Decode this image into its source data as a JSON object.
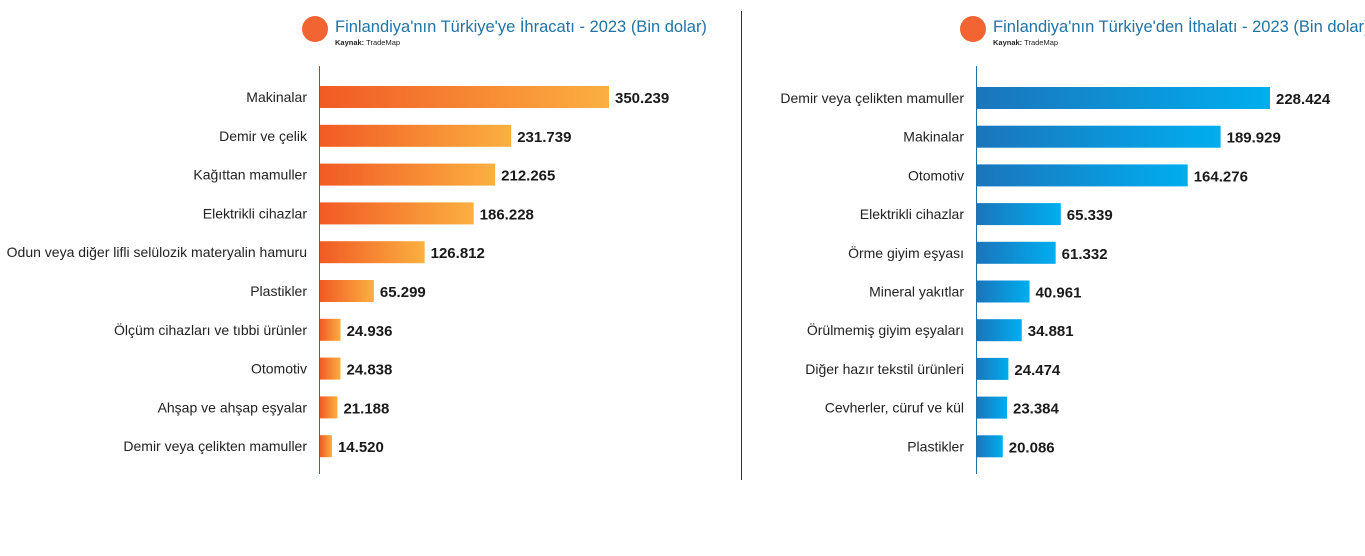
{
  "colors": {
    "title": "#1f73a6",
    "export_dot": "#f26532",
    "import_dot": "#f26532",
    "export_bar_start": "#f15a24",
    "export_bar_end": "#fbb040",
    "import_bar_start": "#1b75bc",
    "import_bar_end": "#00aeef",
    "axis": "#1f73a6",
    "label": "#222222",
    "value": "#1a1a1a"
  },
  "chart_data": [
    {
      "type": "bar",
      "orientation": "horizontal",
      "title": "Finlandiya'nın Türkiye'ye İhracatı - 2023 (Bin dolar)",
      "source_label": "Kaynak:",
      "source_value": "TradeMap",
      "categories": [
        "Makinalar",
        "Demir ve çelik",
        "Kağıttan mamuller",
        "Elektrikli cihazlar",
        "Odun veya diğer lifli selülozik materyalin hamuru",
        "Plastikler",
        "Ölçüm cihazları ve tıbbi ürünler",
        "Otomotiv",
        "Ahşap ve ahşap eşyalar",
        "Demir veya çelikten mamuller"
      ],
      "values": [
        350239,
        231739,
        212265,
        186228,
        126812,
        65299,
        24936,
        24838,
        21188,
        14520
      ],
      "value_labels": [
        "350.239",
        "231.739",
        "212.265",
        "186.228",
        "126.812",
        "65.299",
        "24.936",
        "24.838",
        "21.188",
        "14.520"
      ],
      "xlim": [
        0,
        350239
      ]
    },
    {
      "type": "bar",
      "orientation": "horizontal",
      "title": "Finlandiya'nın Türkiye'den İthalatı - 2023 (Bin dolar)",
      "source_label": "Kaynak:",
      "source_value": "TradeMap",
      "categories": [
        "Demir veya çelikten mamuller",
        "Makinalar",
        "Otomotiv",
        "Elektrikli cihazlar",
        "Örme giyim eşyası",
        "Mineral yakıtlar",
        "Örülmemiş giyim eşyaları",
        "Diğer hazır tekstil ürünleri",
        "Cevherler, cüruf ve kül",
        "Plastikler"
      ],
      "values": [
        228424,
        189929,
        164276,
        65339,
        61332,
        40961,
        34881,
        24474,
        23384,
        20086
      ],
      "value_labels": [
        "228.424",
        "189.929",
        "164.276",
        "65.339",
        "61.332",
        "40.961",
        "34.881",
        "24.474",
        "23.384",
        "20.086"
      ],
      "xlim": [
        0,
        228424
      ]
    }
  ]
}
